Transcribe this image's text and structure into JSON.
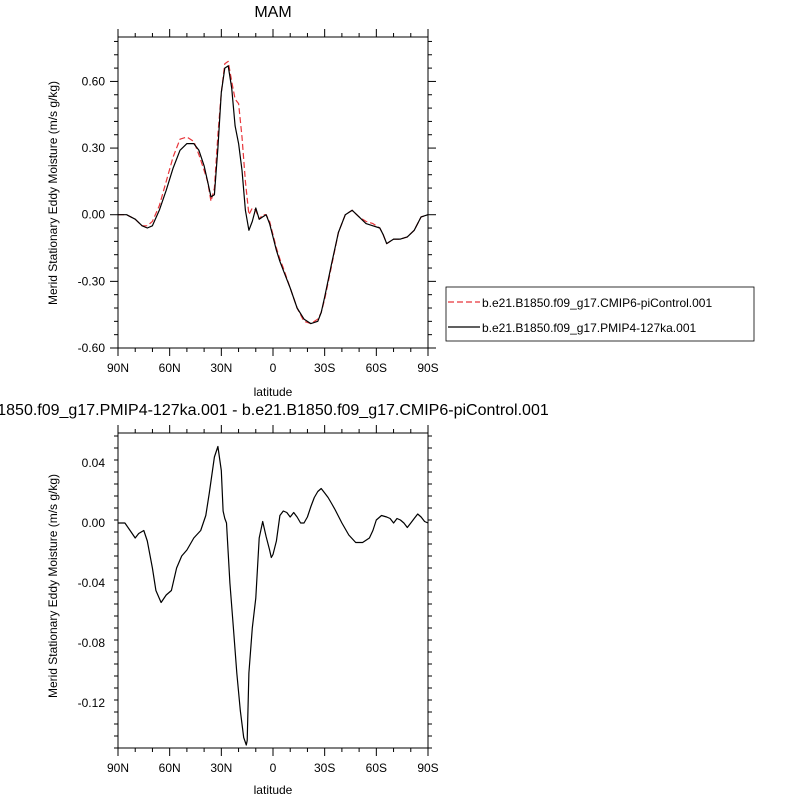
{
  "chart_data": [
    {
      "type": "line",
      "title": "MAM",
      "xlabel": "latitude",
      "ylabel": "Merid Stationary Eddy Moisture (m/s g/kg)",
      "x_unit": "degrees latitude (positive = N)",
      "xlim": [
        90,
        -90
      ],
      "ylim": [
        -0.6,
        0.8
      ],
      "xticks": [
        90,
        60,
        30,
        0,
        -30,
        -60,
        -90
      ],
      "xtick_labels": [
        "90N",
        "60N",
        "30N",
        "0",
        "30S",
        "60S",
        "90S"
      ],
      "yticks": [
        0.6,
        0.3,
        0.0,
        -0.3,
        -0.6
      ],
      "ytick_labels": [
        "0.60",
        "0.30",
        "0.00",
        "-0.30",
        "-0.60"
      ],
      "grid": false,
      "legend_position": "right-outside",
      "series": [
        {
          "name": "b.e21.B1850.f09_g17.CMIP6-piControl.001",
          "color": "#e8353a",
          "dash": "dashed",
          "x": [
            90,
            85,
            80,
            76,
            73,
            70,
            66,
            62,
            58,
            54,
            50,
            46,
            43,
            40,
            38,
            36,
            34,
            32,
            30,
            28,
            26,
            24,
            22,
            20,
            18,
            16,
            14,
            12,
            10,
            8,
            6,
            4,
            2,
            0,
            -2,
            -4,
            -6,
            -10,
            -14,
            -18,
            -22,
            -26,
            -28,
            -30,
            -34,
            -38,
            -42,
            -46,
            -50,
            -54,
            -58,
            -62,
            -64,
            -66,
            -68,
            -70,
            -74,
            -78,
            -82,
            -86,
            -90
          ],
          "y": [
            0.0,
            0.0,
            -0.02,
            -0.05,
            -0.05,
            -0.03,
            0.04,
            0.15,
            0.26,
            0.34,
            0.35,
            0.33,
            0.27,
            0.2,
            0.15,
            0.06,
            0.12,
            0.36,
            0.55,
            0.68,
            0.69,
            0.6,
            0.52,
            0.5,
            0.35,
            0.15,
            0.0,
            0.03,
            0.02,
            -0.02,
            0.0,
            0.0,
            -0.03,
            -0.09,
            -0.15,
            -0.2,
            -0.24,
            -0.33,
            -0.42,
            -0.48,
            -0.49,
            -0.47,
            -0.44,
            -0.38,
            -0.23,
            -0.08,
            0.0,
            0.02,
            -0.01,
            -0.03,
            -0.04,
            -0.06,
            -0.09,
            -0.13,
            -0.12,
            -0.11,
            -0.11,
            -0.1,
            -0.07,
            -0.01,
            0.0
          ]
        },
        {
          "name": "b.e21.B1850.f09_g17.PMIP4-127ka.001",
          "color": "#000000",
          "dash": "solid",
          "x": [
            90,
            85,
            80,
            76,
            73,
            70,
            66,
            62,
            58,
            54,
            50,
            46,
            43,
            40,
            38,
            36,
            34,
            32,
            30,
            28,
            26,
            24,
            22,
            20,
            18,
            16,
            14,
            12,
            10,
            8,
            6,
            4,
            2,
            0,
            -2,
            -4,
            -6,
            -10,
            -14,
            -18,
            -22,
            -26,
            -28,
            -30,
            -34,
            -38,
            -42,
            -46,
            -50,
            -54,
            -58,
            -62,
            -64,
            -66,
            -68,
            -70,
            -74,
            -78,
            -82,
            -86,
            -90
          ],
          "y": [
            0.0,
            0.0,
            -0.02,
            -0.05,
            -0.06,
            -0.05,
            0.02,
            0.11,
            0.21,
            0.29,
            0.32,
            0.32,
            0.29,
            0.22,
            0.15,
            0.08,
            0.09,
            0.3,
            0.55,
            0.66,
            0.67,
            0.57,
            0.4,
            0.32,
            0.2,
            0.02,
            -0.07,
            -0.03,
            0.03,
            -0.02,
            -0.01,
            0.0,
            -0.04,
            -0.1,
            -0.16,
            -0.21,
            -0.25,
            -0.33,
            -0.42,
            -0.47,
            -0.49,
            -0.48,
            -0.44,
            -0.37,
            -0.22,
            -0.08,
            0.0,
            0.02,
            -0.01,
            -0.04,
            -0.05,
            -0.06,
            -0.09,
            -0.13,
            -0.12,
            -0.11,
            -0.11,
            -0.1,
            -0.07,
            -0.01,
            0.0
          ]
        }
      ]
    },
    {
      "type": "line",
      "title": "1850.f09_g17.PMIP4-127ka.001 - b.e21.B1850.f09_g17.CMIP6-piControl.001",
      "xlabel": "latitude",
      "ylabel": "Merid Stationary Eddy Moisture (m/s g/kg)",
      "x_unit": "degrees latitude (positive = N)",
      "xlim": [
        90,
        -90
      ],
      "ylim": [
        -0.15,
        0.06
      ],
      "xticks": [
        90,
        60,
        30,
        0,
        -30,
        -60,
        -90
      ],
      "xtick_labels": [
        "90N",
        "60N",
        "30N",
        "0",
        "30S",
        "60S",
        "90S"
      ],
      "yticks": [
        0.04,
        0.0,
        -0.04,
        -0.08,
        -0.12
      ],
      "ytick_labels": [
        "0.04",
        "0.00",
        "-0.04",
        "-0.08",
        "-0.12"
      ],
      "grid": false,
      "series": [
        {
          "color": "#000000",
          "dash": "solid",
          "x": [
            90,
            86,
            83,
            80,
            78,
            75,
            73,
            70,
            68,
            65,
            62,
            59,
            56,
            53,
            50,
            46,
            42,
            39,
            37,
            34,
            32,
            30,
            29,
            28,
            27,
            26,
            25,
            23,
            21,
            19,
            17,
            15.5,
            15,
            14,
            12,
            10,
            8,
            6,
            4,
            2,
            1,
            0,
            -2,
            -4,
            -6,
            -8,
            -10,
            -12,
            -14,
            -16,
            -18,
            -20,
            -22,
            -24,
            -26,
            -28,
            -30,
            -32,
            -34,
            -36,
            -40,
            -44,
            -48,
            -52,
            -56,
            -58,
            -60,
            -63,
            -66,
            -68,
            -70,
            -72,
            -74,
            -76,
            -78,
            -80,
            -82,
            -84,
            -86,
            -88,
            -90
          ],
          "y": [
            0.0,
            0.0,
            -0.005,
            -0.01,
            -0.007,
            -0.005,
            -0.012,
            -0.03,
            -0.045,
            -0.053,
            -0.048,
            -0.045,
            -0.03,
            -0.022,
            -0.018,
            -0.01,
            -0.005,
            0.005,
            0.02,
            0.044,
            0.051,
            0.035,
            0.008,
            0.003,
            0.0,
            -0.02,
            -0.04,
            -0.07,
            -0.1,
            -0.125,
            -0.143,
            -0.148,
            -0.145,
            -0.1,
            -0.07,
            -0.05,
            -0.01,
            0.001,
            -0.009,
            -0.018,
            -0.023,
            -0.021,
            -0.012,
            0.005,
            0.008,
            0.007,
            0.004,
            0.007,
            0.004,
            0.0,
            0.0,
            0.004,
            0.011,
            0.017,
            0.021,
            0.023,
            0.02,
            0.017,
            0.013,
            0.009,
            0.0,
            -0.008,
            -0.013,
            -0.013,
            -0.01,
            -0.005,
            0.002,
            0.005,
            0.004,
            0.003,
            0.0,
            0.003,
            0.002,
            0.0,
            -0.003,
            0.0,
            0.003,
            0.006,
            0.004,
            0.001,
            0.0
          ]
        }
      ]
    }
  ],
  "legend": {
    "entries": [
      "b.e21.B1850.f09_g17.CMIP6-piControl.001",
      "b.e21.B1850.f09_g17.PMIP4-127ka.001"
    ]
  }
}
